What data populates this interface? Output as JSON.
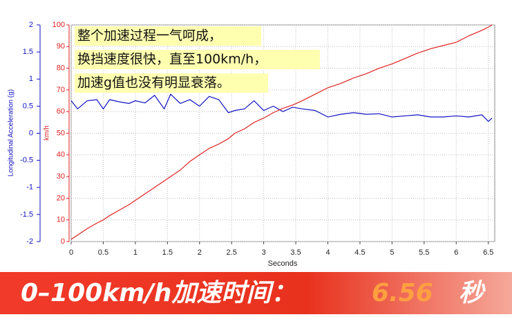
{
  "chart_data": {
    "type": "line",
    "annotations": [
      "整个加速过程一气呵成，",
      "换挡速度很快，直至100km/h，",
      "加速g值也没有明显衰落。"
    ],
    "xlabel": "Seconds",
    "ylabel": "Longitudinal Acceleration (g)",
    "y2label": "km/h",
    "x": [
      0,
      0.1,
      0.25,
      0.4,
      0.5,
      0.6,
      0.75,
      0.9,
      1.0,
      1.15,
      1.3,
      1.45,
      1.55,
      1.7,
      1.85,
      2.0,
      2.15,
      2.3,
      2.45,
      2.55,
      2.7,
      2.85,
      3.0,
      3.15,
      3.3,
      3.45,
      3.6,
      3.8,
      4.0,
      4.2,
      4.4,
      4.6,
      4.8,
      5.0,
      5.2,
      5.4,
      5.6,
      5.8,
      6.0,
      6.2,
      6.4,
      6.5,
      6.56
    ],
    "series": [
      {
        "color": "#1010c0",
        "axis": "y",
        "values": [
          0.6,
          0.45,
          0.6,
          0.62,
          0.45,
          0.62,
          0.58,
          0.55,
          0.6,
          0.56,
          0.7,
          0.45,
          0.72,
          0.55,
          0.62,
          0.5,
          0.68,
          0.62,
          0.38,
          0.42,
          0.45,
          0.6,
          0.42,
          0.5,
          0.4,
          0.48,
          0.45,
          0.42,
          0.3,
          0.35,
          0.38,
          0.35,
          0.36,
          0.3,
          0.32,
          0.34,
          0.3,
          0.3,
          0.32,
          0.3,
          0.34,
          0.22,
          0.28
        ]
      },
      {
        "color": "#e02020",
        "axis": "y2",
        "values": [
          1,
          3,
          6,
          8.5,
          10,
          12,
          14.5,
          17,
          19,
          22,
          25,
          28,
          30,
          33,
          37,
          40,
          43,
          45,
          47.5,
          50,
          52,
          55,
          57,
          59.5,
          61.5,
          63,
          65,
          68,
          71,
          73,
          75.5,
          77.5,
          80,
          82,
          84.5,
          87,
          89,
          90.5,
          92,
          95,
          97.5,
          99,
          100
        ]
      }
    ],
    "xlim": [
      0,
      6.6
    ],
    "xticks": [
      0,
      0.5,
      1,
      1.5,
      2,
      2.5,
      3,
      3.5,
      4,
      4.5,
      5,
      5.5,
      6,
      6.5
    ],
    "ylim": [
      -2,
      2
    ],
    "yticks": [
      -2,
      -1.5,
      -1,
      -0.5,
      0,
      0.5,
      1,
      1.5,
      2
    ],
    "y2lim": [
      0,
      100
    ],
    "y2ticks": [
      0,
      10,
      20,
      30,
      40,
      50,
      60,
      70,
      80,
      90,
      100
    ],
    "grid": true
  },
  "banner": {
    "label": "0–100km/h加速时间：",
    "value": "6.56",
    "unit": "秒"
  }
}
